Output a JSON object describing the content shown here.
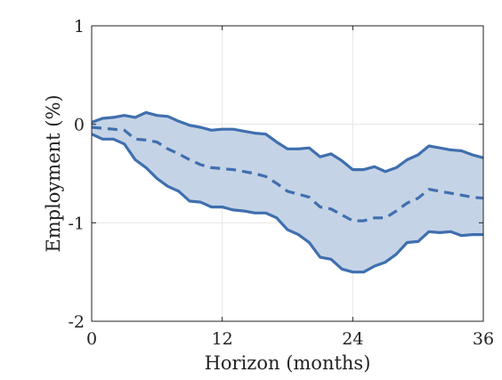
{
  "chart_data": {
    "type": "area",
    "xlabel": "Horizon (months)",
    "ylabel": "Employment (%)",
    "xlim": [
      0,
      36
    ],
    "ylim": [
      -2,
      1
    ],
    "xticks": [
      0,
      12,
      24,
      36
    ],
    "xtick_labels": [
      "0",
      "12",
      "24",
      "36"
    ],
    "yticks": [
      1,
      0,
      -1,
      -2
    ],
    "ytick_labels": [
      "1",
      "0",
      "-1",
      "-2"
    ],
    "grid": true,
    "colors": {
      "band": "#c5d3e6",
      "line": "#3f6fae",
      "axis": "#222222",
      "grid": "#e6e6e6"
    },
    "x": [
      0,
      1,
      2,
      3,
      4,
      5,
      6,
      7,
      8,
      9,
      10,
      11,
      12,
      13,
      14,
      15,
      16,
      17,
      18,
      19,
      20,
      21,
      22,
      23,
      24,
      25,
      26,
      27,
      28,
      29,
      30,
      31,
      32,
      33,
      34,
      35,
      36
    ],
    "series": [
      {
        "role": "upper",
        "style": "solid",
        "values": [
          0.02,
          0.06,
          0.07,
          0.09,
          0.07,
          0.12,
          0.09,
          0.08,
          0.03,
          -0.01,
          -0.03,
          -0.06,
          -0.05,
          -0.05,
          -0.07,
          -0.09,
          -0.1,
          -0.18,
          -0.25,
          -0.25,
          -0.24,
          -0.33,
          -0.3,
          -0.37,
          -0.46,
          -0.46,
          -0.43,
          -0.48,
          -0.44,
          -0.36,
          -0.31,
          -0.22,
          -0.24,
          -0.26,
          -0.27,
          -0.31,
          -0.34
        ]
      },
      {
        "role": "point_estimate",
        "style": "dashed",
        "values": [
          -0.03,
          -0.04,
          -0.05,
          -0.06,
          -0.15,
          -0.16,
          -0.18,
          -0.25,
          -0.3,
          -0.36,
          -0.41,
          -0.44,
          -0.45,
          -0.46,
          -0.48,
          -0.5,
          -0.53,
          -0.6,
          -0.68,
          -0.71,
          -0.74,
          -0.84,
          -0.86,
          -0.92,
          -0.98,
          -0.98,
          -0.95,
          -0.95,
          -0.88,
          -0.8,
          -0.75,
          -0.66,
          -0.68,
          -0.7,
          -0.72,
          -0.74,
          -0.75
        ]
      },
      {
        "role": "lower",
        "style": "solid",
        "values": [
          -0.1,
          -0.15,
          -0.15,
          -0.2,
          -0.36,
          -0.44,
          -0.55,
          -0.63,
          -0.68,
          -0.78,
          -0.79,
          -0.84,
          -0.84,
          -0.87,
          -0.88,
          -0.9,
          -0.9,
          -0.95,
          -1.07,
          -1.12,
          -1.2,
          -1.35,
          -1.37,
          -1.47,
          -1.5,
          -1.5,
          -1.44,
          -1.4,
          -1.32,
          -1.2,
          -1.19,
          -1.09,
          -1.1,
          -1.09,
          -1.13,
          -1.12,
          -1.12
        ]
      }
    ]
  }
}
